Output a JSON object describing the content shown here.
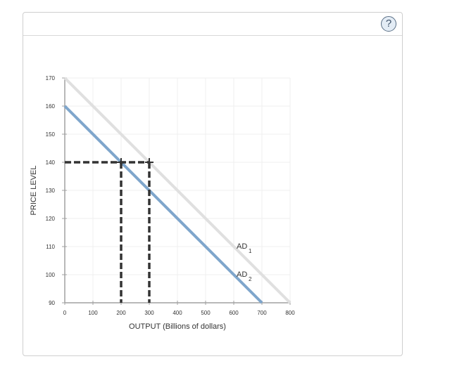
{
  "panel": {
    "help_icon": "question-circle-icon",
    "help_label": "?"
  },
  "chart_data": {
    "type": "line",
    "title": "",
    "xlabel": "OUTPUT (Billions of dollars)",
    "ylabel": "PRICE LEVEL",
    "xlim": [
      0,
      800
    ],
    "ylim": [
      90,
      170
    ],
    "x_ticks": [
      0,
      100,
      200,
      300,
      400,
      500,
      600,
      700,
      800
    ],
    "y_ticks": [
      90,
      100,
      110,
      120,
      130,
      140,
      150,
      160,
      170
    ],
    "grid": true,
    "series": [
      {
        "name": "AD1",
        "label_main": "AD",
        "label_sub": "1",
        "color": "#e0e0e0",
        "points": [
          [
            0,
            170
          ],
          [
            800,
            90
          ]
        ]
      },
      {
        "name": "AD2",
        "label_main": "AD",
        "label_sub": "2",
        "color": "#7fa6cc",
        "points": [
          [
            0,
            160
          ],
          [
            700,
            90
          ]
        ]
      }
    ],
    "reference_lines": [
      {
        "name": "price-140-dashed",
        "style": "dashed",
        "color": "#333333",
        "points": [
          [
            0,
            140
          ],
          [
            300,
            140
          ]
        ]
      },
      {
        "name": "output-200-dashed",
        "style": "dashed",
        "color": "#333333",
        "points": [
          [
            200,
            140
          ],
          [
            200,
            90
          ]
        ]
      },
      {
        "name": "output-300-dashed",
        "style": "dashed",
        "color": "#333333",
        "points": [
          [
            300,
            140
          ],
          [
            300,
            90
          ]
        ]
      }
    ],
    "markers": [
      {
        "x": 200,
        "y": 140,
        "shape": "plus"
      },
      {
        "x": 300,
        "y": 140,
        "shape": "plus"
      }
    ]
  }
}
